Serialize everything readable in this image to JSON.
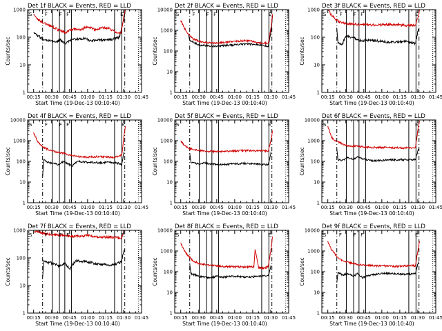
{
  "colors": {
    "events": "#000000",
    "lld": "#d00000",
    "axes": "#000000",
    "background": "#ffffff"
  },
  "chart_data": [
    {
      "type": "line",
      "title": "Det 1f BLACK = Events, RED = LLD",
      "xlabel": "Start Time (19-Dec-13 00:10:40)",
      "ylabel": "Counts/sec",
      "yscale": "log",
      "ylim": [
        1,
        1000
      ],
      "xticks": [
        "00:15",
        "00:30",
        "00:45",
        "01:00",
        "01:15",
        "01:30",
        "01:45"
      ],
      "yticks": [
        "1",
        "10",
        "100",
        "1000"
      ],
      "markers": {
        "solid": [
          30.5,
          36.5,
          41,
          46.5,
          82.5,
          88.5
        ],
        "dashed": [
          22.5,
          91
        ],
        "dotted": [
          102.5
        ],
        "labels": [
          {
            "t": 25.5,
            "text": "F"
          },
          {
            "t": 37.5,
            "text": "F"
          },
          {
            "t": 43.5,
            "text": "F"
          },
          {
            "t": 88.5,
            "text": "E"
          }
        ]
      },
      "series": [
        {
          "name": "Events",
          "t": [
            15,
            19,
            23.5,
            25,
            29.5,
            33,
            37.5,
            41,
            45,
            50.5,
            57.5,
            63,
            70.5,
            78,
            86.5,
            90.5,
            91.5
          ],
          "values": [
            150,
            110,
            80,
            80,
            75,
            65,
            80,
            60,
            75,
            85,
            90,
            75,
            80,
            80,
            100,
            500,
            1000
          ]
        },
        {
          "name": "LLD",
          "t": [
            15,
            18,
            24,
            30,
            36,
            42,
            48,
            54,
            60,
            66,
            72,
            78,
            84,
            88,
            90.5,
            91.5
          ],
          "values": [
            700,
            450,
            330,
            250,
            180,
            150,
            200,
            190,
            240,
            190,
            220,
            210,
            150,
            140,
            700,
            1000
          ]
        }
      ]
    },
    {
      "type": "line",
      "title": "Det 2f BLACK = Events, RED = LLD",
      "xlabel": "Start Time (19-Dec-13 00:10:40)",
      "ylabel": "Counts/sec",
      "yscale": "log",
      "ylim": [
        1,
        10000
      ],
      "xticks": [
        "00:15",
        "00:30",
        "00:45",
        "01:00",
        "01:15",
        "01:30",
        "01:45"
      ],
      "yticks": [
        "1",
        "10",
        "100",
        "1000",
        "10000"
      ],
      "markers": {
        "solid": [
          30.5,
          36.5,
          41,
          46.5,
          82.5,
          88.5
        ],
        "dashed": [
          22.5,
          91
        ],
        "dotted": [
          102.5
        ],
        "labels": [
          {
            "t": 26,
            "text": "F"
          },
          {
            "t": 37.5,
            "text": "F"
          },
          {
            "t": 43.5,
            "text": "F"
          },
          {
            "t": 89.5,
            "text": "E"
          }
        ]
      },
      "series": [
        {
          "name": "Events",
          "t": [
            21.5,
            22.5,
            30,
            40,
            50,
            60,
            70,
            80,
            88,
            90.5,
            91.5
          ],
          "values": [
            600,
            320,
            200,
            170,
            180,
            200,
            220,
            200,
            170,
            1000,
            5000
          ]
        },
        {
          "name": "LLD",
          "t": [
            15,
            18,
            21,
            25,
            30,
            40,
            50,
            60,
            70,
            80,
            88,
            90.5,
            91.5
          ],
          "values": [
            3000,
            1300,
            700,
            400,
            300,
            240,
            260,
            300,
            320,
            260,
            240,
            1500,
            6000
          ]
        }
      ]
    },
    {
      "type": "line",
      "title": "Det 3f BLACK = Events, RED = LLD",
      "xlabel": "Start Time (19-Dec-13 00:10:40)",
      "ylabel": "Counts/sec",
      "yscale": "log",
      "ylim": [
        1,
        1000
      ],
      "xticks": [
        "00:15",
        "00:30",
        "00:45",
        "01:00",
        "01:15",
        "01:30",
        "01:45"
      ],
      "yticks": [
        "1",
        "10",
        "100",
        "1000"
      ],
      "markers": {
        "solid": [
          30.5,
          36.5,
          41,
          46.5,
          82.5,
          88.5
        ],
        "dashed": [
          22.5,
          91
        ],
        "dotted": [
          102.5
        ],
        "labels": [
          {
            "t": 26,
            "text": "F"
          },
          {
            "t": 37.5,
            "text": "F"
          },
          {
            "t": 43.5,
            "text": "F"
          },
          {
            "t": 89,
            "text": "E"
          }
        ]
      },
      "series": [
        {
          "name": "Events",
          "t": [
            22.5,
            23.5,
            27,
            30,
            35,
            42,
            50,
            60,
            70,
            80,
            88,
            90.5
          ],
          "values": [
            200,
            60,
            55,
            110,
            100,
            75,
            80,
            70,
            65,
            70,
            60,
            200
          ]
        },
        {
          "name": "LLD",
          "t": [
            15,
            18,
            21,
            25,
            30,
            40,
            50,
            60,
            70,
            80,
            88,
            90.5,
            91.5
          ],
          "values": [
            1000,
            650,
            450,
            350,
            310,
            290,
            280,
            280,
            290,
            270,
            270,
            600,
            1000
          ]
        }
      ]
    },
    {
      "type": "line",
      "title": "Det 4f BLACK = Events, RED = LLD",
      "xlabel": "Start Time (19-Dec-13 00:10:40)",
      "ylabel": "Counts/sec",
      "yscale": "log",
      "ylim": [
        1,
        10000
      ],
      "xticks": [
        "00:15",
        "00:30",
        "00:45",
        "01:00",
        "01:15",
        "01:30",
        "01:45"
      ],
      "yticks": [
        "1",
        "10",
        "100",
        "1000",
        "10000"
      ],
      "markers": {
        "solid": [
          30.5,
          36.5,
          41,
          46.5,
          82.5,
          88.5
        ],
        "dashed": [
          22.5,
          91
        ],
        "dotted": [
          102.5
        ],
        "labels": [
          {
            "t": 25.5,
            "text": "F"
          },
          {
            "t": 37.5,
            "text": "F"
          },
          {
            "t": 43.5,
            "text": "F"
          },
          {
            "t": 89.5,
            "text": "E"
          }
        ]
      },
      "series": [
        {
          "name": "Events",
          "t": [
            22.5,
            23.5,
            27,
            32,
            36,
            40,
            44,
            47,
            52,
            60,
            70,
            80,
            86,
            88.5,
            90.5
          ],
          "values": [
            20,
            120,
            90,
            80,
            70,
            100,
            75,
            60,
            100,
            90,
            85,
            90,
            80,
            70,
            300
          ]
        },
        {
          "name": "LLD",
          "t": [
            15,
            18,
            21,
            25,
            30,
            35,
            40,
            45,
            50,
            60,
            70,
            80,
            86,
            88.5,
            90.5,
            91.5
          ],
          "values": [
            2500,
            1000,
            600,
            420,
            340,
            270,
            250,
            200,
            180,
            160,
            170,
            160,
            170,
            200,
            2000,
            5000
          ]
        }
      ]
    },
    {
      "type": "line",
      "title": "Det 5f BLACK = Events, RED = LLD",
      "xlabel": "Start Time (19-Dec-13 00:10:40)",
      "ylabel": "Counts/sec",
      "yscale": "log",
      "ylim": [
        1,
        10000
      ],
      "xticks": [
        "00:15",
        "00:30",
        "00:45",
        "01:00",
        "01:15",
        "01:30",
        "01:45"
      ],
      "yticks": [
        "1",
        "10",
        "100",
        "1000",
        "10000"
      ],
      "markers": {
        "solid": [
          30.5,
          36.5,
          41,
          46.5,
          82.5,
          88.5
        ],
        "dashed": [
          22.5,
          91
        ],
        "dotted": [
          102.5
        ],
        "labels": [
          {
            "t": 89,
            "text": "E"
          }
        ]
      },
      "series": [
        {
          "name": "Events",
          "t": [
            22.5,
            23.5,
            27,
            30,
            35,
            40,
            45,
            50,
            60,
            70,
            80,
            88,
            90.5
          ],
          "values": [
            250,
            90,
            80,
            75,
            85,
            75,
            70,
            70,
            75,
            80,
            75,
            70,
            300
          ]
        },
        {
          "name": "LLD",
          "t": [
            15,
            18,
            21,
            25,
            30,
            40,
            50,
            60,
            70,
            80,
            88,
            90.5,
            91.5
          ],
          "values": [
            1000,
            600,
            450,
            380,
            330,
            300,
            310,
            320,
            330,
            320,
            320,
            1200,
            3000
          ]
        }
      ]
    },
    {
      "type": "line",
      "title": "Det 6f BLACK = Events, RED = LLD",
      "xlabel": "Start Time (19-Dec-13 00:10:40)",
      "ylabel": "Counts/sec",
      "yscale": "log",
      "ylim": [
        1,
        10000
      ],
      "xticks": [
        "00:15",
        "00:30",
        "00:45",
        "01:00",
        "01:15",
        "01:30",
        "01:45"
      ],
      "yticks": [
        "1",
        "10",
        "100",
        "1000",
        "10000"
      ],
      "markers": {
        "solid": [
          30.5,
          36.5,
          41,
          46.5,
          82.5,
          88.5
        ],
        "dashed": [
          22.5,
          91
        ],
        "dotted": [
          102.5
        ],
        "labels": [
          {
            "t": 89,
            "text": "E"
          }
        ]
      },
      "series": [
        {
          "name": "Events",
          "t": [
            22.5,
            23.5,
            27,
            32,
            36,
            40,
            45,
            50,
            60,
            70,
            80,
            88,
            90.5
          ],
          "values": [
            400,
            120,
            110,
            150,
            130,
            160,
            130,
            110,
            110,
            120,
            120,
            120,
            400
          ]
        },
        {
          "name": "LLD",
          "t": [
            15,
            18,
            21,
            25,
            30,
            40,
            50,
            60,
            70,
            80,
            88,
            90.5,
            91.5
          ],
          "values": [
            5000,
            1500,
            1000,
            800,
            600,
            520,
            480,
            470,
            450,
            440,
            460,
            5000,
            9000
          ]
        }
      ]
    },
    {
      "type": "line",
      "title": "Det 7f BLACK = Events, RED = LLD",
      "xlabel": "Start Time (19-Dec-13 00:10:40)",
      "ylabel": "Counts/sec",
      "yscale": "log",
      "ylim": [
        1,
        1000
      ],
      "xticks": [
        "00:15",
        "00:30",
        "00:45",
        "01:00",
        "01:15",
        "01:30",
        "01:45"
      ],
      "yticks": [
        "1",
        "10",
        "100",
        "1000"
      ],
      "markers": {
        "solid": [
          30.5,
          36.5,
          41,
          46.5,
          82.5,
          88.5
        ],
        "dashed": [
          22.5,
          91
        ],
        "dotted": [
          102.5
        ],
        "labels": [
          {
            "t": 25.5,
            "text": "F"
          },
          {
            "t": 37.5,
            "text": "F"
          },
          {
            "t": 43.5,
            "text": "F"
          },
          {
            "t": 89,
            "text": "E"
          }
        ]
      },
      "series": [
        {
          "name": "Events",
          "t": [
            22.5,
            23.5,
            27,
            32,
            37,
            41,
            45,
            50,
            60,
            70,
            80,
            88,
            90.5
          ],
          "values": [
            20,
            80,
            70,
            60,
            50,
            65,
            40,
            80,
            70,
            60,
            55,
            70,
            200
          ]
        },
        {
          "name": "LLD",
          "t": [
            15,
            20,
            25,
            30,
            35,
            40,
            45,
            50,
            60,
            70,
            80,
            88,
            90.5
          ],
          "values": [
            950,
            850,
            750,
            700,
            680,
            650,
            620,
            600,
            650,
            560,
            580,
            500,
            1000
          ]
        }
      ]
    },
    {
      "type": "line",
      "title": "Det 8f BLACK = Events, RED = LLD",
      "xlabel": "Start Time (19-Dec-13 00:10:40)",
      "ylabel": "Counts/sec",
      "yscale": "log",
      "ylim": [
        1,
        10000
      ],
      "xticks": [
        "00:15",
        "00:30",
        "00:45",
        "01:00",
        "01:15",
        "01:30",
        "01:45"
      ],
      "yticks": [
        "1",
        "10",
        "100",
        "1000",
        "10000"
      ],
      "markers": {
        "solid": [
          30.5,
          36.5,
          41,
          46.5,
          82.5,
          88.5
        ],
        "dashed": [
          22.5,
          91
        ],
        "dotted": [
          102.5
        ],
        "labels": [
          {
            "t": 89,
            "text": "E"
          }
        ]
      },
      "series": [
        {
          "name": "Events",
          "t": [
            22.5,
            23.5,
            27,
            30,
            35,
            40,
            45,
            50,
            60,
            70,
            80,
            88,
            90.5
          ],
          "values": [
            250,
            80,
            70,
            60,
            55,
            50,
            60,
            55,
            60,
            55,
            60,
            65,
            200
          ]
        },
        {
          "name": "LLD",
          "t": [
            15,
            18,
            21,
            25,
            30,
            40,
            50,
            60,
            70,
            76,
            77,
            80,
            85,
            88,
            90.5,
            91.5
          ],
          "values": [
            2500,
            1000,
            600,
            350,
            250,
            200,
            180,
            170,
            170,
            170,
            1200,
            150,
            150,
            180,
            1500,
            5000
          ]
        }
      ]
    },
    {
      "type": "line",
      "title": "Det 9f BLACK = Events, RED = LLD",
      "xlabel": "Start Time (19-Dec-13 00:10:40)",
      "ylabel": "Counts/sec",
      "yscale": "log",
      "ylim": [
        1,
        10000
      ],
      "xticks": [
        "00:15",
        "00:30",
        "00:45",
        "01:00",
        "01:15",
        "01:30",
        "01:45"
      ],
      "yticks": [
        "1",
        "10",
        "100",
        "1000",
        "10000"
      ],
      "markers": {
        "solid": [
          30.5,
          36.5,
          41,
          46.5,
          82.5,
          88.5
        ],
        "dashed": [
          22.5,
          91
        ],
        "dotted": [
          102.5
        ],
        "labels": [
          {
            "t": 25.5,
            "text": "F"
          },
          {
            "t": 37.5,
            "text": "F"
          },
          {
            "t": 43.5,
            "text": "F"
          },
          {
            "t": 89,
            "text": "E"
          }
        ]
      },
      "series": [
        {
          "name": "Events",
          "t": [
            22.5,
            23.5,
            27,
            32,
            36,
            40,
            44,
            47,
            52,
            60,
            70,
            80,
            88,
            90.5
          ],
          "values": [
            30,
            90,
            70,
            80,
            60,
            80,
            50,
            60,
            70,
            85,
            80,
            75,
            80,
            300
          ]
        },
        {
          "name": "LLD",
          "t": [
            15,
            18,
            21,
            25,
            30,
            40,
            50,
            60,
            70,
            80,
            86,
            88,
            90.5,
            91.5
          ],
          "values": [
            3000,
            1200,
            700,
            400,
            300,
            220,
            200,
            190,
            180,
            190,
            200,
            190,
            1500,
            3000
          ]
        }
      ]
    }
  ]
}
